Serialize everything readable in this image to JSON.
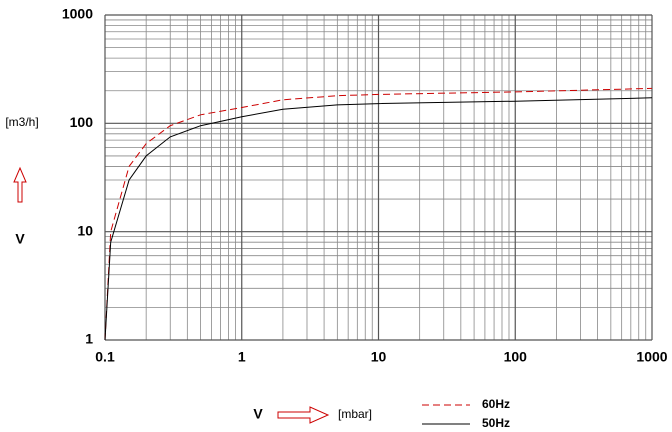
{
  "chart_data": {
    "type": "line",
    "xscale": "log",
    "yscale": "log",
    "xlim": [
      0.1,
      1000
    ],
    "ylim": [
      1,
      1000
    ],
    "xticks": [
      0.1,
      1,
      10,
      100,
      1000
    ],
    "yticks": [
      1,
      10,
      100,
      1000
    ],
    "grid": true,
    "minor_grid": true,
    "ylabel": "[m3/h]",
    "ylabel_symbol": "V",
    "xlabel": "[mbar]",
    "xlabel_symbol": "V",
    "legend": "bottom-right",
    "x": [
      0.1,
      0.11,
      0.15,
      0.2,
      0.3,
      0.5,
      1,
      2,
      5,
      10,
      100,
      1000
    ],
    "series": [
      {
        "name": "60Hz",
        "color": "#cc0000",
        "dash": true,
        "values": [
          1,
          10,
          40,
          65,
          95,
          120,
          140,
          165,
          180,
          185,
          195,
          210
        ]
      },
      {
        "name": "50Hz",
        "color": "#000000",
        "dash": false,
        "values": [
          1,
          8,
          30,
          50,
          75,
          95,
          115,
          135,
          148,
          152,
          160,
          172
        ]
      }
    ]
  }
}
